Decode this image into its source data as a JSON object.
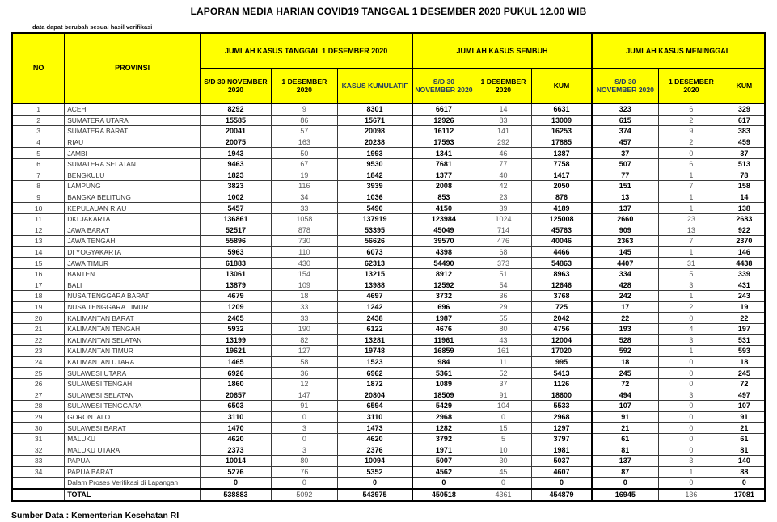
{
  "title": "LAPORAN MEDIA HARIAN COVID19 TANGGAL 1 DESEMBER 2020 PUKUL 12.00 WIB",
  "note": "data dapat berubah sesuai hasil verifikasi",
  "footer": "Sumber Data : Kementerian Kesehatan RI",
  "colors": {
    "header_bg": "#FFFF00",
    "navy_header_text": "#1F3864",
    "secondary_value_text": "#595959",
    "border": "#000000"
  },
  "table": {
    "headers": {
      "no": "NO",
      "province": "PROVINSI"
    },
    "groups": [
      "JUMLAH KASUS TANGGAL 1 DESEMBER 2020",
      "JUMLAH KASUS SEMBUH",
      "JUMLAH KASUS MENINGGAL"
    ],
    "subheaders": [
      "S/D 30 NOVEMBER 2020",
      "1 DESEMBER 2020",
      "KASUS KUMULATIF",
      "S/D 30 NOVEMBER 2020",
      "1 DESEMBER 2020",
      "KUM",
      "S/D 30 NOVEMBER 2020",
      "1 DESEMBER 2020",
      "KUM"
    ],
    "rows": [
      [
        "1",
        "ACEH",
        "8292",
        "9",
        "8301",
        "6617",
        "14",
        "6631",
        "323",
        "6",
        "329"
      ],
      [
        "2",
        "SUMATERA UTARA",
        "15585",
        "86",
        "15671",
        "12926",
        "83",
        "13009",
        "615",
        "2",
        "617"
      ],
      [
        "3",
        "SUMATERA BARAT",
        "20041",
        "57",
        "20098",
        "16112",
        "141",
        "16253",
        "374",
        "9",
        "383"
      ],
      [
        "4",
        "RIAU",
        "20075",
        "163",
        "20238",
        "17593",
        "292",
        "17885",
        "457",
        "2",
        "459"
      ],
      [
        "5",
        "JAMBI",
        "1943",
        "50",
        "1993",
        "1341",
        "46",
        "1387",
        "37",
        "0",
        "37"
      ],
      [
        "6",
        "SUMATERA SELATAN",
        "9463",
        "67",
        "9530",
        "7681",
        "77",
        "7758",
        "507",
        "6",
        "513"
      ],
      [
        "7",
        "BENGKULU",
        "1823",
        "19",
        "1842",
        "1377",
        "40",
        "1417",
        "77",
        "1",
        "78"
      ],
      [
        "8",
        "LAMPUNG",
        "3823",
        "116",
        "3939",
        "2008",
        "42",
        "2050",
        "151",
        "7",
        "158"
      ],
      [
        "9",
        "BANGKA BELITUNG",
        "1002",
        "34",
        "1036",
        "853",
        "23",
        "876",
        "13",
        "1",
        "14"
      ],
      [
        "10",
        "KEPULAUAN RIAU",
        "5457",
        "33",
        "5490",
        "4150",
        "39",
        "4189",
        "137",
        "1",
        "138"
      ],
      [
        "11",
        "DKI JAKARTA",
        "136861",
        "1058",
        "137919",
        "123984",
        "1024",
        "125008",
        "2660",
        "23",
        "2683"
      ],
      [
        "12",
        "JAWA BARAT",
        "52517",
        "878",
        "53395",
        "45049",
        "714",
        "45763",
        "909",
        "13",
        "922"
      ],
      [
        "13",
        "JAWA TENGAH",
        "55896",
        "730",
        "56626",
        "39570",
        "476",
        "40046",
        "2363",
        "7",
        "2370"
      ],
      [
        "14",
        "DI YOGYAKARTA",
        "5963",
        "110",
        "6073",
        "4398",
        "68",
        "4466",
        "145",
        "1",
        "146"
      ],
      [
        "15",
        "JAWA TIMUR",
        "61883",
        "430",
        "62313",
        "54490",
        "373",
        "54863",
        "4407",
        "31",
        "4438"
      ],
      [
        "16",
        "BANTEN",
        "13061",
        "154",
        "13215",
        "8912",
        "51",
        "8963",
        "334",
        "5",
        "339"
      ],
      [
        "17",
        "BALI",
        "13879",
        "109",
        "13988",
        "12592",
        "54",
        "12646",
        "428",
        "3",
        "431"
      ],
      [
        "18",
        "NUSA TENGGARA BARAT",
        "4679",
        "18",
        "4697",
        "3732",
        "36",
        "3768",
        "242",
        "1",
        "243"
      ],
      [
        "19",
        "NUSA TENGGARA TIMUR",
        "1209",
        "33",
        "1242",
        "696",
        "29",
        "725",
        "17",
        "2",
        "19"
      ],
      [
        "20",
        "KALIMANTAN BARAT",
        "2405",
        "33",
        "2438",
        "1987",
        "55",
        "2042",
        "22",
        "0",
        "22"
      ],
      [
        "21",
        "KALIMANTAN TENGAH",
        "5932",
        "190",
        "6122",
        "4676",
        "80",
        "4756",
        "193",
        "4",
        "197"
      ],
      [
        "22",
        "KALIMANTAN SELATAN",
        "13199",
        "82",
        "13281",
        "11961",
        "43",
        "12004",
        "528",
        "3",
        "531"
      ],
      [
        "23",
        "KALIMANTAN TIMUR",
        "19621",
        "127",
        "19748",
        "16859",
        "161",
        "17020",
        "592",
        "1",
        "593"
      ],
      [
        "24",
        "KALIMANTAN UTARA",
        "1465",
        "58",
        "1523",
        "984",
        "11",
        "995",
        "18",
        "0",
        "18"
      ],
      [
        "25",
        "SULAWESI UTARA",
        "6926",
        "36",
        "6962",
        "5361",
        "52",
        "5413",
        "245",
        "0",
        "245"
      ],
      [
        "26",
        "SULAWESI TENGAH",
        "1860",
        "12",
        "1872",
        "1089",
        "37",
        "1126",
        "72",
        "0",
        "72"
      ],
      [
        "27",
        "SULAWESI SELATAN",
        "20657",
        "147",
        "20804",
        "18509",
        "91",
        "18600",
        "494",
        "3",
        "497"
      ],
      [
        "28",
        "SULAWESI TENGGARA",
        "6503",
        "91",
        "6594",
        "5429",
        "104",
        "5533",
        "107",
        "0",
        "107"
      ],
      [
        "29",
        "GORONTALO",
        "3110",
        "0",
        "3110",
        "2968",
        "0",
        "2968",
        "91",
        "0",
        "91"
      ],
      [
        "30",
        "SULAWESI BARAT",
        "1470",
        "3",
        "1473",
        "1282",
        "15",
        "1297",
        "21",
        "0",
        "21"
      ],
      [
        "31",
        "MALUKU",
        "4620",
        "0",
        "4620",
        "3792",
        "5",
        "3797",
        "61",
        "0",
        "61"
      ],
      [
        "32",
        "MALUKU UTARA",
        "2373",
        "3",
        "2376",
        "1971",
        "10",
        "1981",
        "81",
        "0",
        "81"
      ],
      [
        "33",
        "PAPUA",
        "10014",
        "80",
        "10094",
        "5007",
        "30",
        "5037",
        "137",
        "3",
        "140"
      ],
      [
        "34",
        "PAPUA BARAT",
        "5276",
        "76",
        "5352",
        "4562",
        "45",
        "4607",
        "87",
        "1",
        "88"
      ],
      [
        "",
        "Dalam Proses Verifikasi di Lapangan",
        "0",
        "0",
        "0",
        "0",
        "0",
        "0",
        "0",
        "0",
        "0"
      ]
    ],
    "total_row": [
      "",
      "TOTAL",
      "538883",
      "5092",
      "543975",
      "450518",
      "4361",
      "454879",
      "16945",
      "136",
      "17081"
    ]
  }
}
